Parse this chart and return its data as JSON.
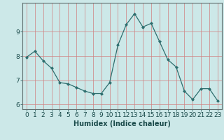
{
  "x": [
    0,
    1,
    2,
    3,
    4,
    5,
    6,
    7,
    8,
    9,
    10,
    11,
    12,
    13,
    14,
    15,
    16,
    17,
    18,
    19,
    20,
    21,
    22,
    23
  ],
  "y": [
    7.95,
    8.2,
    7.8,
    7.5,
    6.9,
    6.85,
    6.7,
    6.55,
    6.45,
    6.45,
    6.9,
    8.45,
    9.3,
    9.75,
    9.2,
    9.35,
    8.6,
    7.85,
    7.55,
    6.55,
    6.2,
    6.65,
    6.65,
    6.15
  ],
  "ylim": [
    5.8,
    10.2
  ],
  "yticks": [
    6,
    7,
    8,
    9
  ],
  "xlabel": "Humidex (Indice chaleur)",
  "line_color": "#2e6e6e",
  "marker_color": "#2e6e6e",
  "bg_color": "#cce8e8",
  "grid_color_v": "#d08080",
  "grid_color_h": "#d08080",
  "xlabel_fontsize": 7,
  "tick_fontsize": 6.5
}
